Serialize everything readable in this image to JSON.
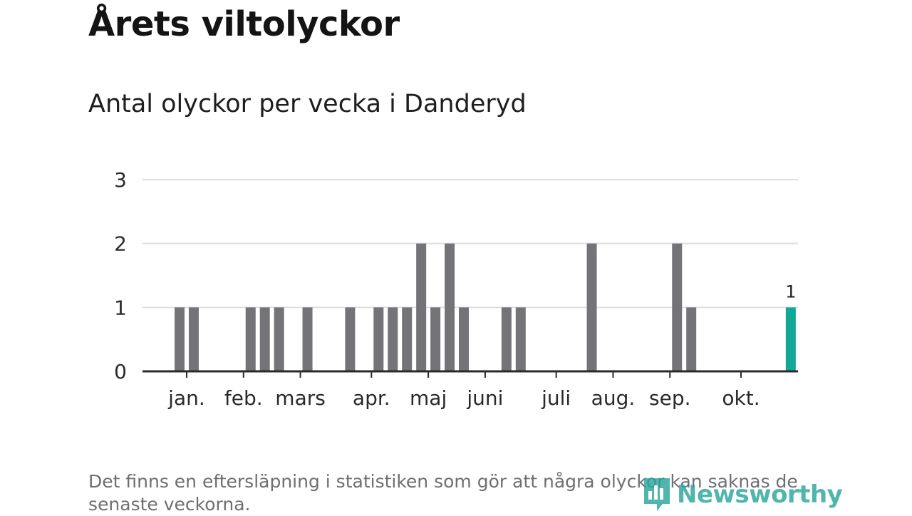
{
  "header": {
    "title": "Årets viltolyckor",
    "subtitle": "Antal olyckor per vecka i Danderyd"
  },
  "footnote": "Det finns en eftersläpning i statistiken som gör att några olyckor kan saknas de senaste veckorna.",
  "brand": {
    "name": "Newsworthy",
    "color": "#2aa69b"
  },
  "colors": {
    "bar": "#747377",
    "highlight": "#11a899",
    "grid": "#dedede",
    "axis": "#2a2a2a"
  },
  "chart_data": {
    "type": "bar",
    "xlabel": "",
    "ylabel": "",
    "ylim": [
      0,
      3
    ],
    "yticks": [
      0,
      1,
      2,
      3
    ],
    "grid": true,
    "weeks": [
      1,
      2,
      3,
      4,
      5,
      6,
      7,
      8,
      9,
      10,
      11,
      12,
      13,
      14,
      15,
      16,
      17,
      18,
      19,
      20,
      21,
      22,
      23,
      24,
      25,
      26,
      27,
      28,
      29,
      30,
      31,
      32,
      33,
      34,
      35,
      36,
      37,
      38,
      39,
      40,
      41,
      42,
      43,
      44,
      45,
      46
    ],
    "values": [
      0,
      0,
      1,
      1,
      0,
      0,
      0,
      1,
      1,
      1,
      0,
      1,
      0,
      0,
      1,
      0,
      1,
      1,
      1,
      2,
      1,
      2,
      1,
      0,
      0,
      1,
      1,
      0,
      0,
      0,
      0,
      2,
      0,
      0,
      0,
      0,
      0,
      2,
      1,
      0,
      0,
      0,
      0,
      0,
      0,
      1
    ],
    "highlight_index": 45,
    "highlight_label": "1",
    "month_labels": [
      {
        "label": "jan.",
        "week": 3.5
      },
      {
        "label": "feb.",
        "week": 7.5
      },
      {
        "label": "mars",
        "week": 11.5
      },
      {
        "label": "apr.",
        "week": 16.5
      },
      {
        "label": "maj",
        "week": 20.5
      },
      {
        "label": "juni",
        "week": 24.5
      },
      {
        "label": "juli",
        "week": 29.5
      },
      {
        "label": "aug.",
        "week": 33.5
      },
      {
        "label": "sep.",
        "week": 37.5
      },
      {
        "label": "okt.",
        "week": 42.5
      }
    ]
  }
}
